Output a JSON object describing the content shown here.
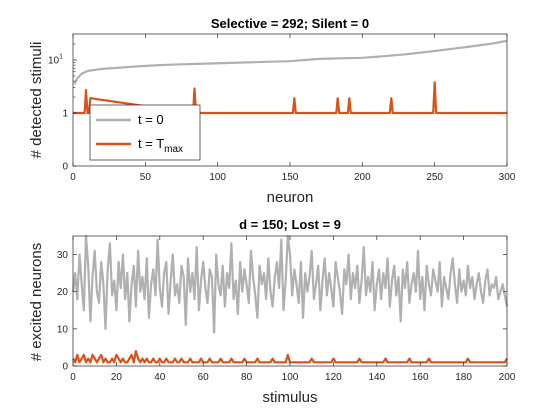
{
  "chart_data": [
    {
      "type": "line",
      "title": "Selective = 292; Silent = 0",
      "xlabel": "neuron",
      "ylabel": "# detected stimuli",
      "xlim": [
        0,
        300
      ],
      "ylim": [
        0,
        25
      ],
      "yscale": "custom (0, 1 then log above 1)",
      "xticks": [
        "0",
        "50",
        "100",
        "150",
        "200",
        "250",
        "300"
      ],
      "yticks": [
        {
          "value": 0,
          "label": "0"
        },
        {
          "value": 1,
          "label": "1"
        },
        {
          "value": 10,
          "label": "10",
          "superscript": "1"
        }
      ],
      "grid": false,
      "legend_position": "bottom-left",
      "series": [
        {
          "name": "t = 0",
          "color": "#B0B0B0",
          "x": [
            1,
            3,
            6,
            10,
            20,
            30,
            45,
            60,
            75,
            95,
            120,
            150,
            170,
            200,
            215,
            230,
            245,
            260,
            275,
            290,
            300
          ],
          "y": [
            3.5,
            4.5,
            5.5,
            6.2,
            6.8,
            7.1,
            7.6,
            8.0,
            8.3,
            8.6,
            9.0,
            9.5,
            10.5,
            11.0,
            11.8,
            12.8,
            14.2,
            16.0,
            18.0,
            20.5,
            23.0
          ]
        },
        {
          "name_parts": {
            "main": "t = T",
            "sub": "max"
          },
          "color": "#D95319",
          "x": [
            0,
            8,
            9,
            10,
            11,
            12,
            83,
            84,
            85,
            152,
            153,
            154,
            182,
            183,
            184,
            190,
            191,
            192,
            219,
            220,
            221,
            249,
            250,
            251,
            300
          ],
          "y": [
            1,
            1,
            2.7,
            1,
            1,
            1.9,
            1,
            2.9,
            1,
            1,
            1.9,
            1,
            1,
            1.9,
            1,
            1,
            1.9,
            1,
            1,
            1.9,
            1,
            1,
            3.8,
            1,
            1
          ]
        }
      ]
    },
    {
      "type": "line",
      "title": "d = 150; Lost = 9",
      "xlabel": "stimulus",
      "ylabel": "# excited neurons",
      "xlim": [
        0,
        200
      ],
      "ylim": [
        0,
        35
      ],
      "xticks": [
        "0",
        "20",
        "40",
        "60",
        "80",
        "100",
        "120",
        "140",
        "160",
        "180",
        "200"
      ],
      "yticks": [
        "0",
        "10",
        "20",
        "30"
      ],
      "grid": false,
      "series": [
        {
          "color": "#B0B0B0",
          "y": [
            20,
            25,
            18,
            30,
            22,
            15,
            35,
            27,
            12,
            24,
            31,
            20,
            17,
            28,
            22,
            10,
            26,
            33,
            19,
            23,
            15,
            28,
            21,
            30,
            18,
            25,
            12,
            22,
            27,
            16,
            31,
            20,
            24,
            18,
            29,
            13,
            22,
            26,
            19,
            34,
            21,
            16,
            25,
            28,
            14,
            23,
            30,
            19,
            22,
            17,
            27,
            24,
            11,
            29,
            20,
            25,
            18,
            32,
            15,
            23,
            28,
            21,
            17,
            26,
            24,
            9,
            30,
            22,
            19,
            27,
            16,
            25,
            21,
            33,
            18,
            23,
            14,
            28,
            20,
            26,
            22,
            17,
            31,
            24,
            19,
            13,
            27,
            22,
            25,
            18,
            29,
            20,
            16,
            24,
            28,
            21,
            34,
            15,
            23,
            35,
            30,
            19,
            26,
            22,
            17,
            28,
            13,
            25,
            20,
            24,
            31,
            18,
            22,
            27,
            15,
            23,
            29,
            19,
            25,
            21,
            16,
            28,
            24,
            20,
            14,
            26,
            22,
            30,
            18,
            25,
            21,
            27,
            17,
            23,
            32,
            19,
            24,
            20,
            28,
            15,
            22,
            26,
            18,
            25,
            21,
            29,
            16,
            23,
            27,
            19,
            24,
            12,
            26,
            21,
            28,
            17,
            22,
            25,
            20,
            31,
            18,
            24,
            15,
            27,
            22,
            19,
            26,
            23,
            20,
            28,
            16,
            24,
            21,
            18,
            25,
            29,
            22,
            17,
            26,
            20,
            23,
            19,
            27,
            21,
            24,
            18,
            22,
            25,
            20,
            17,
            23,
            26,
            19,
            22,
            21,
            24,
            18,
            20,
            22,
            19,
            16
          ]
        },
        {
          "color": "#D95319",
          "y": [
            2,
            1,
            3,
            1,
            2,
            3,
            1,
            2,
            1,
            3,
            2,
            1,
            2,
            3,
            1,
            2,
            1,
            1,
            2,
            1,
            3,
            2,
            1,
            2,
            1,
            1,
            2,
            3,
            1,
            4,
            2,
            1,
            2,
            1,
            2,
            1,
            1,
            2,
            1,
            1,
            2,
            1,
            1,
            2,
            1,
            1,
            1,
            2,
            1,
            1,
            2,
            1,
            1,
            1,
            2,
            1,
            1,
            1,
            1,
            2,
            1,
            1,
            1,
            2,
            1,
            1,
            1,
            1,
            2,
            1,
            1,
            1,
            1,
            2,
            1,
            1,
            1,
            1,
            1,
            2,
            1,
            1,
            1,
            1,
            1,
            2,
            1,
            1,
            1,
            1,
            1,
            1,
            2,
            1,
            1,
            1,
            1,
            1,
            1,
            3,
            1,
            1,
            1,
            1,
            1,
            1,
            1,
            1,
            1,
            1,
            2,
            1,
            1,
            1,
            1,
            1,
            1,
            1,
            1,
            1,
            2,
            1,
            1,
            1,
            1,
            1,
            1,
            1,
            1,
            1,
            1,
            1,
            2,
            1,
            1,
            1,
            1,
            1,
            1,
            1,
            1,
            1,
            1,
            1,
            2,
            1,
            1,
            1,
            1,
            1,
            1,
            1,
            1,
            1,
            1,
            2,
            1,
            1,
            1,
            1,
            1,
            1,
            1,
            1,
            2,
            1,
            1,
            1,
            1,
            1,
            1,
            1,
            1,
            1,
            1,
            1,
            1,
            1,
            1,
            1,
            1,
            1,
            2,
            1,
            1,
            1,
            1,
            1,
            1,
            1,
            1,
            1,
            1,
            1,
            1,
            1,
            1,
            1,
            1,
            1,
            2
          ]
        }
      ]
    }
  ]
}
